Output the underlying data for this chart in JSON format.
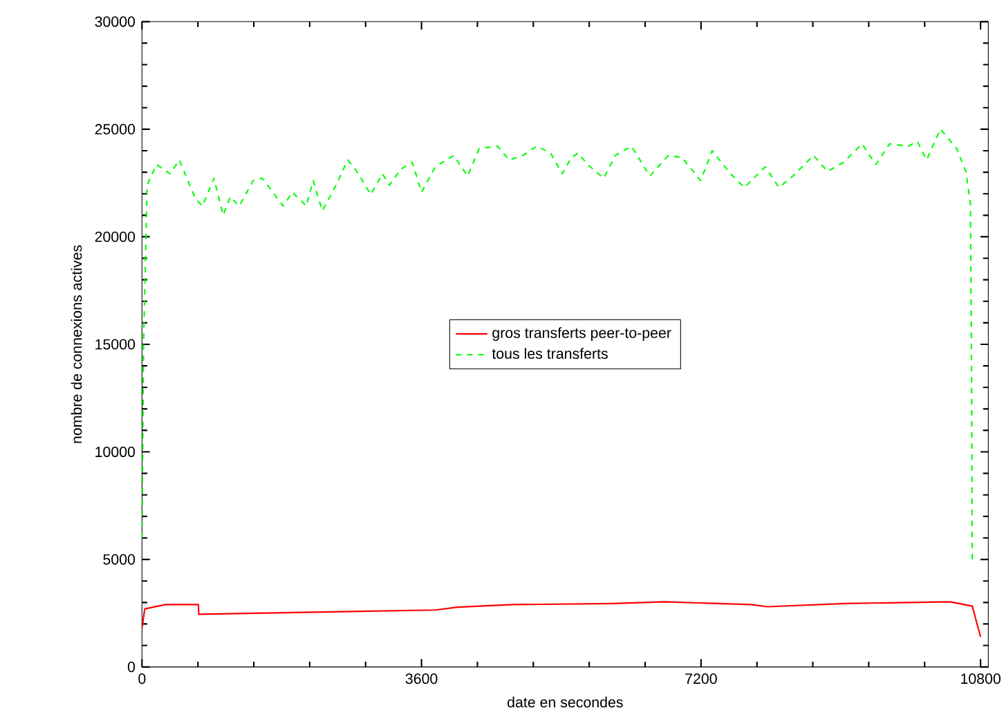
{
  "chart_data": {
    "type": "line",
    "xlabel": "date en secondes",
    "ylabel": "nombre de connexions actives",
    "xlim": [
      0,
      10900
    ],
    "ylim": [
      0,
      30000
    ],
    "xticks": [
      0,
      3600,
      7200,
      10800
    ],
    "yticks": [
      0,
      5000,
      10000,
      15000,
      20000,
      25000,
      30000
    ],
    "grid": false,
    "legend": "center",
    "marker": "none",
    "series": [
      {
        "name": "gros transferts peer-to-peer",
        "color": "#ff0000",
        "line_style": "solid",
        "x": [
          0,
          36,
          303,
          727,
          731,
          3778,
          4064,
          4776,
          6060,
          6737,
          7842,
          8055,
          9054,
          10408,
          10693,
          10800
        ],
        "values": [
          1800,
          2700,
          2900,
          2900,
          2450,
          2650,
          2780,
          2900,
          2950,
          3030,
          2900,
          2800,
          2950,
          3030,
          2830,
          1400
        ]
      },
      {
        "name": "tous les transferts",
        "color": "#00ff00",
        "line_style": "dashed",
        "x": [
          0,
          20,
          66,
          184,
          362,
          481,
          690,
          779,
          927,
          1046,
          1135,
          1253,
          1431,
          1551,
          1818,
          1937,
          2116,
          2205,
          2322,
          2500,
          2650,
          2768,
          2946,
          3096,
          3185,
          3333,
          3481,
          3600,
          3778,
          4015,
          4194,
          4343,
          4580,
          4728,
          4906,
          5085,
          5263,
          5413,
          5530,
          5619,
          5739,
          5947,
          6095,
          6304,
          6541,
          6778,
          6956,
          7195,
          7343,
          7580,
          7758,
          8026,
          8204,
          8382,
          8649,
          8828,
          9036,
          9273,
          9451,
          9629,
          9868,
          9986,
          10105,
          10283,
          10492,
          10610,
          10670,
          10684,
          10693
        ],
        "values": [
          6000,
          15000,
          22400,
          23360,
          22930,
          23570,
          21750,
          21430,
          22720,
          21000,
          21860,
          21430,
          22610,
          22720,
          21430,
          22070,
          21430,
          22610,
          21210,
          22400,
          23570,
          23040,
          21960,
          22930,
          22400,
          23140,
          23460,
          22070,
          23250,
          23780,
          22820,
          24100,
          24210,
          23570,
          23780,
          24210,
          23890,
          22930,
          23680,
          23890,
          23360,
          22720,
          23780,
          24210,
          22820,
          23780,
          23680,
          22610,
          24000,
          22930,
          22290,
          23250,
          22290,
          22820,
          23780,
          23040,
          23460,
          24320,
          23360,
          24320,
          24210,
          24430,
          23570,
          25010,
          24100,
          23040,
          21530,
          14000,
          5000
        ]
      }
    ]
  }
}
